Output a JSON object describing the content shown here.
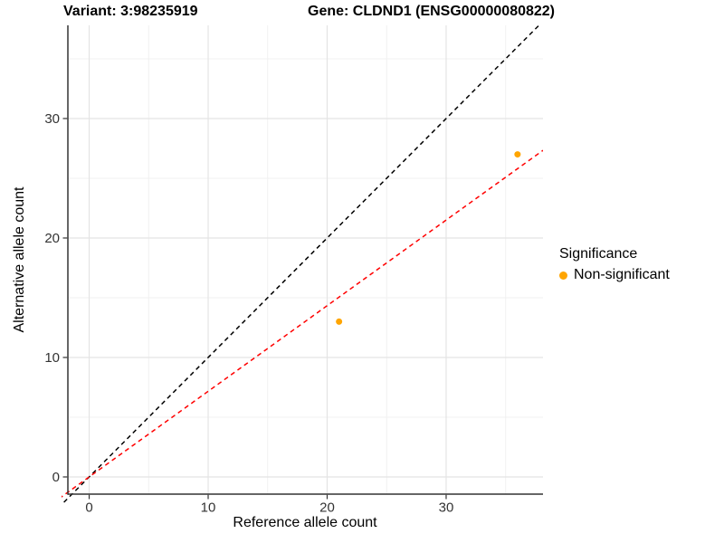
{
  "chart_data": {
    "type": "scatter",
    "title_left": "Variant: 3:98235919",
    "title_right": "Gene: CLDND1 (ENSG00000080822)",
    "xlabel": "Reference allele count",
    "ylabel": "Alternative allele count",
    "xlim": [
      -1.79,
      38.14
    ],
    "ylim": [
      -1.44,
      37.8
    ],
    "x_major_ticks": [
      0,
      10,
      20,
      30
    ],
    "y_major_ticks": [
      0,
      10,
      20,
      30
    ],
    "x_minor_ticks": [
      5,
      15,
      25,
      35
    ],
    "y_minor_ticks": [
      5,
      15,
      25,
      35
    ],
    "grid": {
      "major_color": "#e4e4e4",
      "minor_color": "#f1f1f1",
      "background": "#ffffff"
    },
    "axis_color": "#333333",
    "tick_label_color": "#333333",
    "points": [
      {
        "x": 21,
        "y": 13,
        "significance": "Non-significant"
      },
      {
        "x": 36,
        "y": 27,
        "significance": "Non-significant"
      }
    ],
    "point_color": "#FFA500",
    "point_radius": 3.5,
    "lines": [
      {
        "name": "identity-line",
        "slope": 1.0,
        "intercept": 0,
        "color": "#000000",
        "dashed": true
      },
      {
        "name": "fit-line",
        "slope": 0.7167,
        "intercept": 0,
        "color": "#FF0000",
        "dashed": true
      }
    ],
    "legend": {
      "title": "Significance",
      "items": [
        {
          "label": "Non-significant",
          "color": "#FFA500"
        }
      ]
    }
  }
}
